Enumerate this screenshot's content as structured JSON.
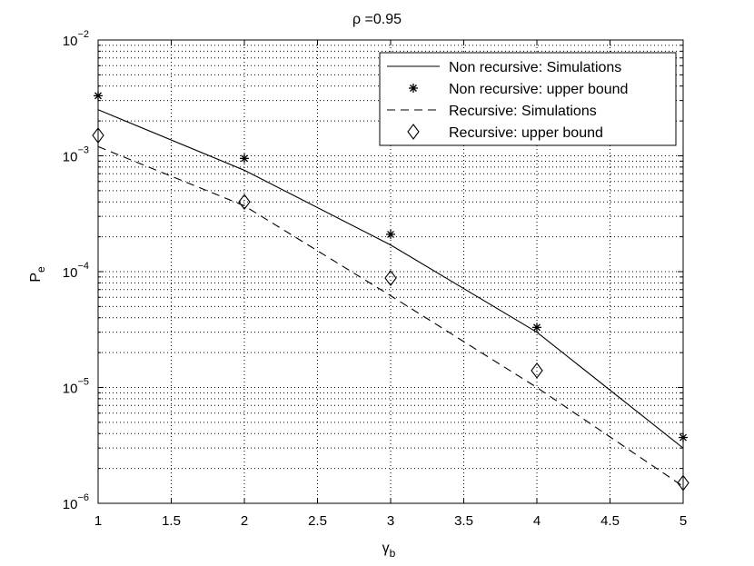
{
  "chart_data": {
    "type": "line",
    "title": "ρ =0.95",
    "xlabel": "γ",
    "xlabel_sub": "b",
    "ylabel": "P",
    "ylabel_sub": "e",
    "xlim": [
      1,
      5
    ],
    "ylim": [
      1e-06,
      0.01
    ],
    "yscale": "log",
    "grid": true,
    "legend_position": "top-right",
    "x_ticks": [
      1,
      1.5,
      2,
      2.5,
      3,
      3.5,
      4,
      4.5,
      5
    ],
    "x_tick_labels": [
      "1",
      "1.5",
      "2",
      "2.5",
      "3",
      "3.5",
      "4",
      "4.5",
      "5"
    ],
    "y_ticks": [
      {
        "value": 1e-06,
        "base": "10",
        "exp": "−6"
      },
      {
        "value": 1e-05,
        "base": "10",
        "exp": "−5"
      },
      {
        "value": 0.0001,
        "base": "10",
        "exp": "−4"
      },
      {
        "value": 0.001,
        "base": "10",
        "exp": "−3"
      },
      {
        "value": 0.01,
        "base": "10",
        "exp": "−2"
      }
    ],
    "series": [
      {
        "name": "Non recursive: Simulations",
        "style": "solid",
        "marker": "none",
        "x": [
          1,
          2,
          3,
          4,
          5
        ],
        "y": [
          0.0025,
          0.00075,
          0.00017,
          3e-05,
          3e-06
        ]
      },
      {
        "name": "Non recursive: upper bound",
        "style": "none",
        "marker": "star",
        "x": [
          1,
          2,
          3,
          4,
          5
        ],
        "y": [
          0.0033,
          0.00095,
          0.00021,
          3.3e-05,
          3.7e-06
        ]
      },
      {
        "name": "Recursive: Simulations",
        "style": "dashed",
        "marker": "none",
        "x": [
          1,
          2,
          3,
          4,
          5
        ],
        "y": [
          0.0012,
          0.00037,
          6.2e-05,
          1e-05,
          1.4e-06
        ]
      },
      {
        "name": "Recursive: upper bound",
        "style": "none",
        "marker": "diamond",
        "x": [
          1,
          2,
          3,
          4,
          5
        ],
        "y": [
          0.0015,
          0.0004,
          8.8e-05,
          1.4e-05,
          1.5e-06
        ]
      }
    ]
  }
}
